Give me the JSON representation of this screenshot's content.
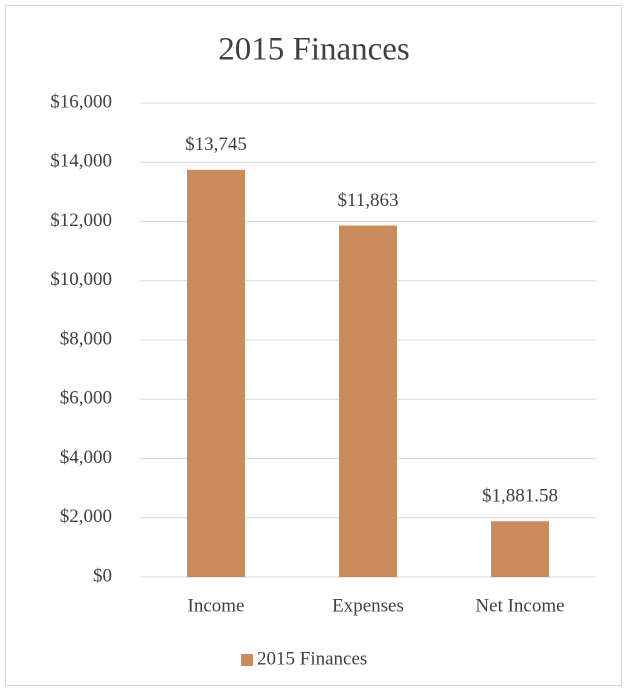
{
  "chart_data": {
    "type": "bar",
    "title": "2015 Finances",
    "categories": [
      "Income",
      "Expenses",
      "Net Income"
    ],
    "series": [
      {
        "name": "2015 Finances",
        "color": "#cc8b5c",
        "values": [
          13745,
          11863,
          1881.58
        ],
        "value_labels": [
          "$13,745",
          "$11,863",
          "$1,881.58"
        ]
      }
    ],
    "ylim": [
      0,
      16000
    ],
    "yticks": [
      {
        "value": 0,
        "label": "$0"
      },
      {
        "value": 2000,
        "label": "$2,000"
      },
      {
        "value": 4000,
        "label": "$4,000"
      },
      {
        "value": 6000,
        "label": "$6,000"
      },
      {
        "value": 8000,
        "label": "$8,000"
      },
      {
        "value": 10000,
        "label": "$10,000"
      },
      {
        "value": 12000,
        "label": "$12,000"
      },
      {
        "value": 14000,
        "label": "$14,000"
      },
      {
        "value": 16000,
        "label": "$16,000"
      }
    ],
    "grid": true,
    "legend": "bottom"
  }
}
